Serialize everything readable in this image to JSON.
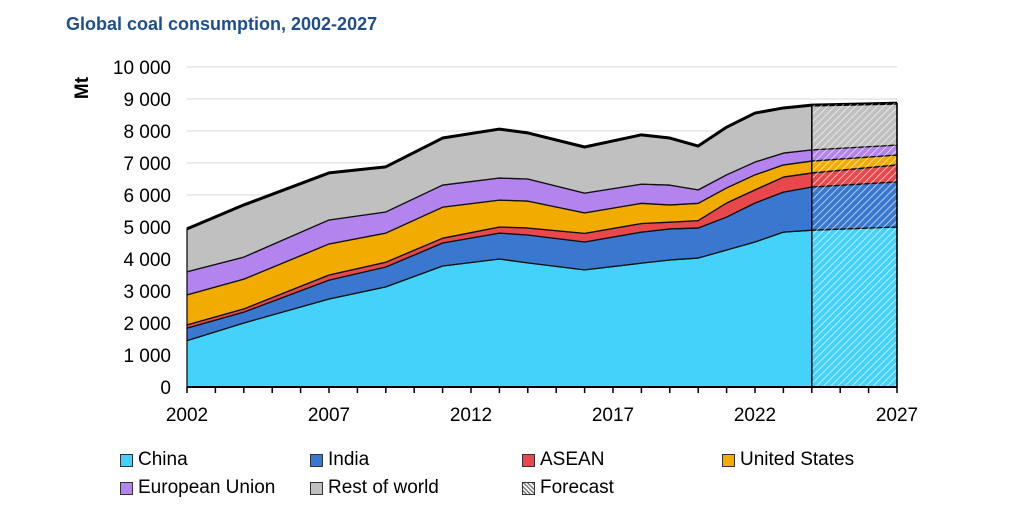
{
  "chart_data": {
    "type": "area",
    "stacked": true,
    "title": "Global coal consumption, 2002-2027",
    "ylabel": "Mt",
    "xlabel": "",
    "ylim": [
      0,
      10000
    ],
    "yticks": [
      "0",
      "1 000",
      "2 000",
      "3 000",
      "4 000",
      "5 000",
      "6 000",
      "7 000",
      "8 000",
      "9 000",
      "10 000"
    ],
    "xticks": [
      "2002",
      "2007",
      "2012",
      "2017",
      "2022",
      "2027"
    ],
    "xlim": [
      2002,
      2027
    ],
    "grid": true,
    "legend_placement": "bottom",
    "forecast_start": 2024,
    "x": [
      2002,
      2004,
      2007,
      2009,
      2011,
      2013,
      2014,
      2016,
      2018,
      2019,
      2020,
      2021,
      2022,
      2023,
      2024,
      2027
    ],
    "series": [
      {
        "name": "China",
        "color": "#45d2fa",
        "values": [
          1450,
          2000,
          2750,
          3130,
          3780,
          4000,
          3880,
          3660,
          3870,
          3970,
          4030,
          4280,
          4530,
          4840,
          4900,
          5000
        ]
      },
      {
        "name": "India",
        "color": "#3a78d0",
        "values": [
          390,
          340,
          590,
          620,
          720,
          810,
          870,
          870,
          970,
          970,
          940,
          1030,
          1220,
          1250,
          1350,
          1410
        ]
      },
      {
        "name": "ASEAN",
        "color": "#e8484b",
        "values": [
          100,
          100,
          160,
          150,
          150,
          190,
          220,
          270,
          270,
          210,
          230,
          440,
          410,
          470,
          440,
          530
        ]
      },
      {
        "name": "United States",
        "color": "#f2ab00",
        "values": [
          940,
          930,
          970,
          910,
          970,
          840,
          840,
          640,
          630,
          540,
          540,
          470,
          470,
          380,
          370,
          310
        ]
      },
      {
        "name": "European Union",
        "color": "#b383ee",
        "values": [
          720,
          690,
          750,
          660,
          690,
          690,
          690,
          620,
          600,
          620,
          420,
          410,
          400,
          370,
          350,
          310
        ]
      },
      {
        "name": "Rest of world",
        "color": "#c0c0c0",
        "values": [
          1340,
          1630,
          1470,
          1410,
          1470,
          1530,
          1440,
          1440,
          1540,
          1470,
          1370,
          1490,
          1530,
          1410,
          1400,
          1310
        ]
      }
    ],
    "forecast_label": "Forecast"
  }
}
